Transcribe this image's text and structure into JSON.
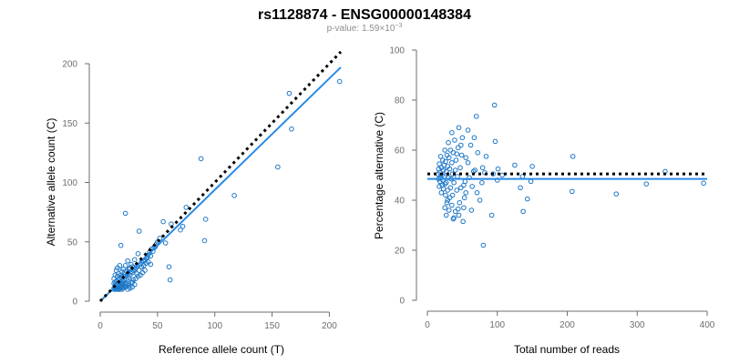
{
  "figure": {
    "title": "rs1128874 - ENSG00000148384",
    "subtitle_prefix": "p-value: 1.59×10",
    "subtitle_exp": "−3"
  },
  "colors": {
    "points": "#1f78c8",
    "fit": "#2a8ae6",
    "reference": "#000000",
    "axes": "#6e6e6e"
  },
  "chart_data": [
    {
      "type": "scatter",
      "title": "",
      "xlabel": "Reference allele count (T)",
      "ylabel": "Alternative allele count (C)",
      "xlim": [
        0,
        210
      ],
      "ylim": [
        0,
        200
      ],
      "xticks": [
        0,
        50,
        100,
        150,
        200
      ],
      "yticks": [
        0,
        50,
        100,
        150,
        200
      ],
      "fit_line": {
        "x": [
          0,
          210
        ],
        "y": [
          0,
          197
        ]
      },
      "reference_line": {
        "x": [
          0,
          210
        ],
        "y": [
          0,
          210
        ]
      },
      "points": [
        [
          209,
          185
        ],
        [
          165,
          175
        ],
        [
          167,
          145
        ],
        [
          155,
          113
        ],
        [
          117,
          89
        ],
        [
          88,
          120
        ],
        [
          92,
          69
        ],
        [
          91,
          51
        ],
        [
          75,
          79
        ],
        [
          72,
          63
        ],
        [
          70,
          60
        ],
        [
          62,
          65
        ],
        [
          55,
          67
        ],
        [
          60,
          29
        ],
        [
          61,
          18
        ],
        [
          57,
          49
        ],
        [
          52,
          53
        ],
        [
          50,
          50
        ],
        [
          49,
          48
        ],
        [
          48,
          46
        ],
        [
          47,
          45
        ],
        [
          46,
          42
        ],
        [
          45,
          44
        ],
        [
          44,
          38
        ],
        [
          43,
          41
        ],
        [
          42,
          39
        ],
        [
          41,
          37
        ],
        [
          40,
          36
        ],
        [
          39,
          35
        ],
        [
          38,
          34
        ],
        [
          36,
          33
        ],
        [
          35,
          31
        ],
        [
          34,
          59
        ],
        [
          33,
          40
        ],
        [
          32,
          30
        ],
        [
          31,
          28
        ],
        [
          30,
          27
        ],
        [
          30,
          35
        ],
        [
          29,
          26
        ],
        [
          28,
          29
        ],
        [
          28,
          24
        ],
        [
          27,
          31
        ],
        [
          27,
          25
        ],
        [
          26,
          22
        ],
        [
          26,
          28
        ],
        [
          25,
          20
        ],
        [
          25,
          27
        ],
        [
          24,
          23
        ],
        [
          24,
          34
        ],
        [
          23,
          19
        ],
        [
          23,
          25
        ],
        [
          22,
          21
        ],
        [
          22,
          74
        ],
        [
          22,
          30
        ],
        [
          21,
          18
        ],
        [
          21,
          24
        ],
        [
          20,
          16
        ],
        [
          20,
          21
        ],
        [
          20,
          27
        ],
        [
          19,
          15
        ],
        [
          19,
          20
        ],
        [
          19,
          25
        ],
        [
          18,
          14
        ],
        [
          18,
          17
        ],
        [
          18,
          22
        ],
        [
          18,
          47
        ],
        [
          17,
          12
        ],
        [
          17,
          16
        ],
        [
          17,
          19
        ],
        [
          17,
          30
        ],
        [
          16,
          11
        ],
        [
          16,
          13
        ],
        [
          16,
          18
        ],
        [
          16,
          23
        ],
        [
          15,
          10
        ],
        [
          15,
          12
        ],
        [
          15,
          15
        ],
        [
          15,
          21
        ],
        [
          15,
          28
        ],
        [
          14,
          11
        ],
        [
          14,
          14
        ],
        [
          14,
          17
        ],
        [
          14,
          26
        ],
        [
          13,
          10
        ],
        [
          13,
          13
        ],
        [
          13,
          16
        ],
        [
          13,
          22
        ],
        [
          12,
          11
        ],
        [
          12,
          15
        ],
        [
          12,
          19
        ],
        [
          30,
          14
        ],
        [
          28,
          12
        ],
        [
          26,
          11
        ],
        [
          24,
          10
        ],
        [
          22,
          12
        ],
        [
          20,
          11
        ],
        [
          19,
          10
        ],
        [
          18,
          12
        ],
        [
          17,
          10
        ],
        [
          23,
          14
        ],
        [
          25,
          15
        ],
        [
          27,
          16
        ],
        [
          29,
          18
        ],
        [
          31,
          19
        ],
        [
          33,
          21
        ],
        [
          35,
          22
        ],
        [
          37,
          24
        ],
        [
          39,
          26
        ],
        [
          36,
          29
        ],
        [
          38,
          30
        ],
        [
          40,
          32
        ],
        [
          42,
          33
        ],
        [
          44,
          31
        ],
        [
          32,
          23
        ],
        [
          34,
          26
        ],
        [
          21,
          13
        ],
        [
          19,
          12
        ],
        [
          17,
          11
        ],
        [
          16,
          10
        ],
        [
          25,
          13
        ],
        [
          28,
          16
        ],
        [
          22,
          15
        ],
        [
          20,
          14
        ],
        [
          18,
          13
        ],
        [
          16,
          15
        ],
        [
          14,
          12
        ],
        [
          13,
          11
        ],
        [
          12,
          10
        ]
      ]
    },
    {
      "type": "scatter",
      "title": "",
      "xlabel": "Total number of reads",
      "ylabel": "Percentage alternative (C)",
      "xlim": [
        0,
        400
      ],
      "ylim": [
        0,
        100
      ],
      "xticks": [
        0,
        100,
        200,
        300,
        400
      ],
      "yticks": [
        0,
        20,
        40,
        60,
        80,
        100
      ],
      "fit_line": {
        "x": [
          0,
          400
        ],
        "y": [
          48.5,
          48.5
        ]
      },
      "reference_line": {
        "x": [
          0,
          400
        ],
        "y": [
          50.5,
          50.5
        ]
      },
      "points": [
        [
          395,
          46.8
        ],
        [
          340,
          51.5
        ],
        [
          313,
          46.5
        ],
        [
          270,
          42.5
        ],
        [
          208,
          57.5
        ],
        [
          207,
          43.5
        ],
        [
          150,
          53.5
        ],
        [
          148,
          47.5
        ],
        [
          143,
          40.5
        ],
        [
          137,
          35.5
        ],
        [
          136,
          49.5
        ],
        [
          133,
          45
        ],
        [
          125,
          54
        ],
        [
          107,
          50
        ],
        [
          101,
          52.5
        ],
        [
          100,
          48
        ],
        [
          97,
          63.5
        ],
        [
          96,
          78
        ],
        [
          94,
          50.5
        ],
        [
          92,
          34
        ],
        [
          84,
          57.5
        ],
        [
          82,
          51
        ],
        [
          80,
          22
        ],
        [
          79,
          53
        ],
        [
          78,
          47
        ],
        [
          72,
          59
        ],
        [
          71,
          43
        ],
        [
          70,
          73.5
        ],
        [
          67,
          65
        ],
        [
          66,
          51.5
        ],
        [
          64,
          45.5
        ],
        [
          62,
          62
        ],
        [
          60,
          49
        ],
        [
          58,
          55
        ],
        [
          55,
          57
        ],
        [
          54,
          47.5
        ],
        [
          53,
          41
        ],
        [
          52,
          37
        ],
        [
          51,
          31.5
        ],
        [
          50,
          65
        ],
        [
          49,
          58
        ],
        [
          48,
          45
        ],
        [
          47,
          53
        ],
        [
          46,
          39
        ],
        [
          45,
          69
        ],
        [
          44,
          61
        ],
        [
          43,
          49.5
        ],
        [
          42,
          44
        ],
        [
          41,
          56
        ],
        [
          40,
          35.5
        ],
        [
          40,
          52
        ],
        [
          39,
          64
        ],
        [
          38,
          47
        ],
        [
          37,
          59
        ],
        [
          37,
          32.5
        ],
        [
          36,
          42
        ],
        [
          36,
          50.5
        ],
        [
          35,
          55
        ],
        [
          35,
          38
        ],
        [
          34,
          48.5
        ],
        [
          33,
          60
        ],
        [
          33,
          45
        ],
        [
          32,
          52.5
        ],
        [
          32,
          41
        ],
        [
          31,
          57
        ],
        [
          31,
          36
        ],
        [
          30,
          49
        ],
        [
          30,
          63
        ],
        [
          29,
          44
        ],
        [
          29,
          53.5
        ],
        [
          28,
          39
        ],
        [
          28,
          58
        ],
        [
          27,
          47
        ],
        [
          27,
          51.5
        ],
        [
          26,
          42
        ],
        [
          26,
          55.5
        ],
        [
          25,
          37
        ],
        [
          25,
          46.5
        ],
        [
          25,
          60
        ],
        [
          24,
          49.5
        ],
        [
          24,
          54
        ],
        [
          23,
          44.5
        ],
        [
          23,
          52
        ],
        [
          22,
          48
        ],
        [
          22,
          56
        ],
        [
          21,
          50
        ],
        [
          21,
          46
        ],
        [
          20,
          53
        ],
        [
          20,
          43
        ],
        [
          19,
          49
        ],
        [
          19,
          57.5
        ],
        [
          18,
          47.5
        ],
        [
          18,
          51
        ],
        [
          17,
          45.5
        ],
        [
          17,
          54.5
        ],
        [
          16,
          48.5
        ],
        [
          16,
          52.5
        ],
        [
          15,
          50.5
        ],
        [
          45,
          34
        ],
        [
          55,
          43
        ],
        [
          63,
          36
        ],
        [
          68,
          52
        ],
        [
          75,
          40
        ],
        [
          35,
          67
        ],
        [
          58,
          68
        ],
        [
          42,
          58.5
        ],
        [
          48,
          62
        ],
        [
          38,
          33
        ],
        [
          44,
          36.5
        ],
        [
          52,
          46
        ],
        [
          29,
          40
        ],
        [
          27,
          34
        ]
      ]
    }
  ]
}
